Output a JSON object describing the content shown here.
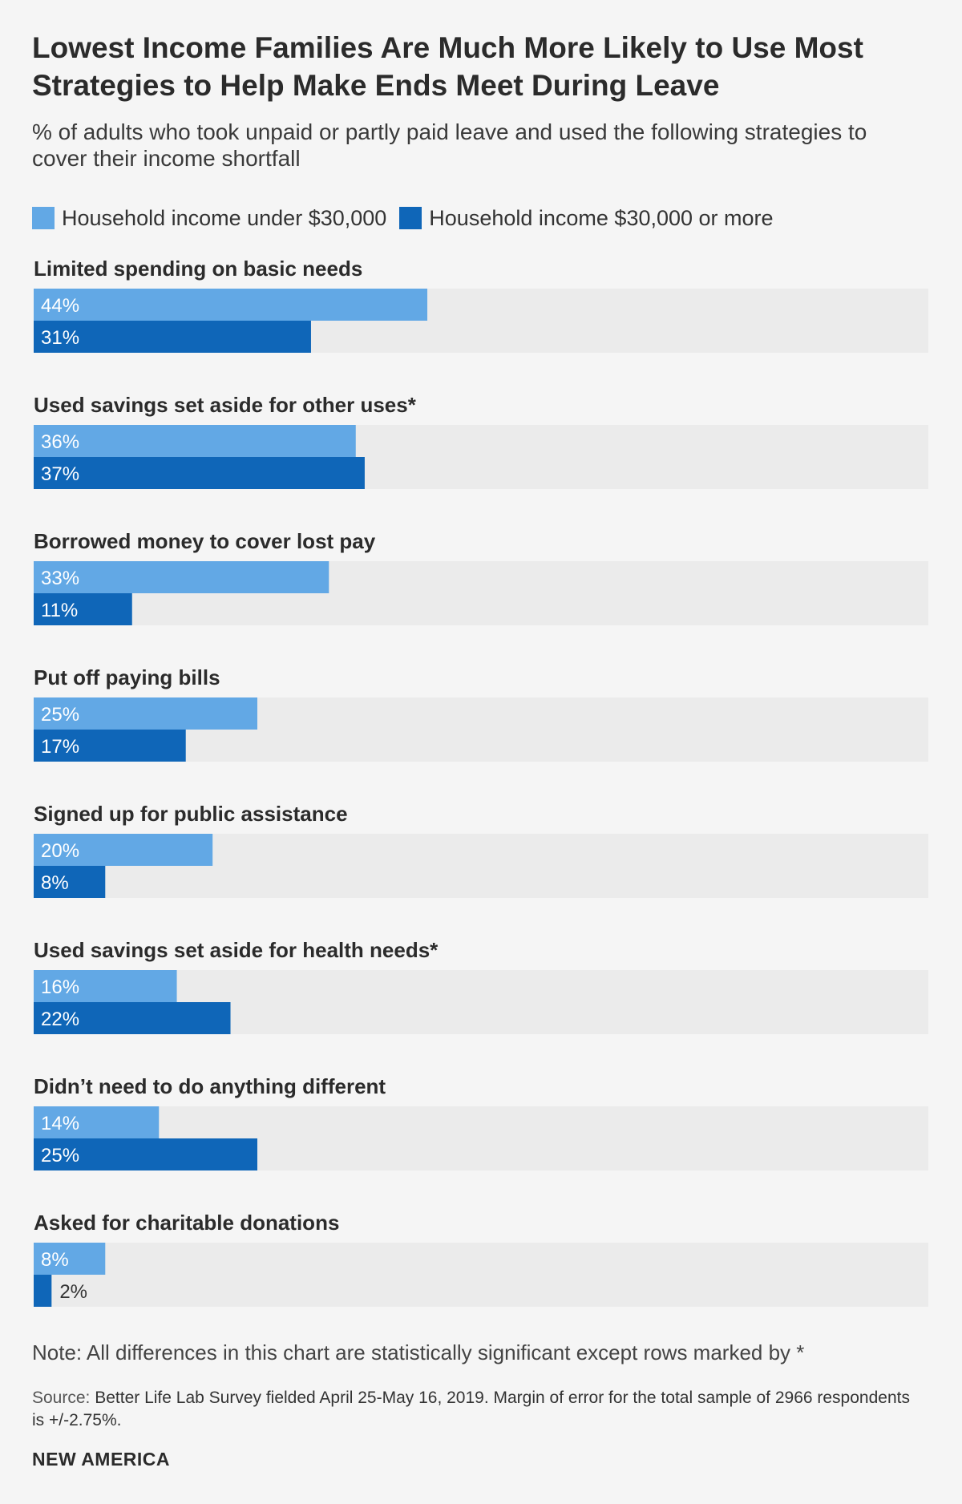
{
  "title": "Lowest Income Families Are Much More Likely to Use Most Strategies to Help Make Ends Meet During Leave",
  "subtitle": "% of adults who took unpaid or partly paid leave and used the following strategies to cover their income shortfall",
  "colors": {
    "background": "#f5f5f5",
    "track": "#ebebeb",
    "series_light": "#62a8e5",
    "series_dark": "#0f66b8"
  },
  "chart_data": {
    "type": "bar",
    "orientation": "horizontal",
    "value_suffix": "%",
    "xlim": [
      0,
      100
    ],
    "grid": false,
    "legend_placement": "top-left",
    "categories": [
      "Limited spending on basic needs",
      "Used savings set aside for other uses*",
      "Borrowed money to cover lost pay",
      "Put off paying bills",
      "Signed up for public assistance",
      "Used savings set aside for health needs*",
      "Didn’t need to do anything different",
      "Asked for charitable donations"
    ],
    "series": [
      {
        "name": "Household income under $30,000",
        "color": "#62a8e5",
        "values": [
          44,
          36,
          33,
          25,
          20,
          16,
          14,
          8
        ]
      },
      {
        "name": "Household income $30,000 or more",
        "color": "#0f66b8",
        "values": [
          31,
          37,
          11,
          17,
          8,
          22,
          25,
          2
        ]
      }
    ]
  },
  "note": "Note: All differences in this chart are statistically significant except rows marked by *",
  "source": {
    "label": "Source:",
    "text": "Better Life Lab Survey fielded April 25-May 16, 2019. Margin of error for the total sample of 2966 respondents is +/-2.75%."
  },
  "publisher": "NEW AMERICA"
}
